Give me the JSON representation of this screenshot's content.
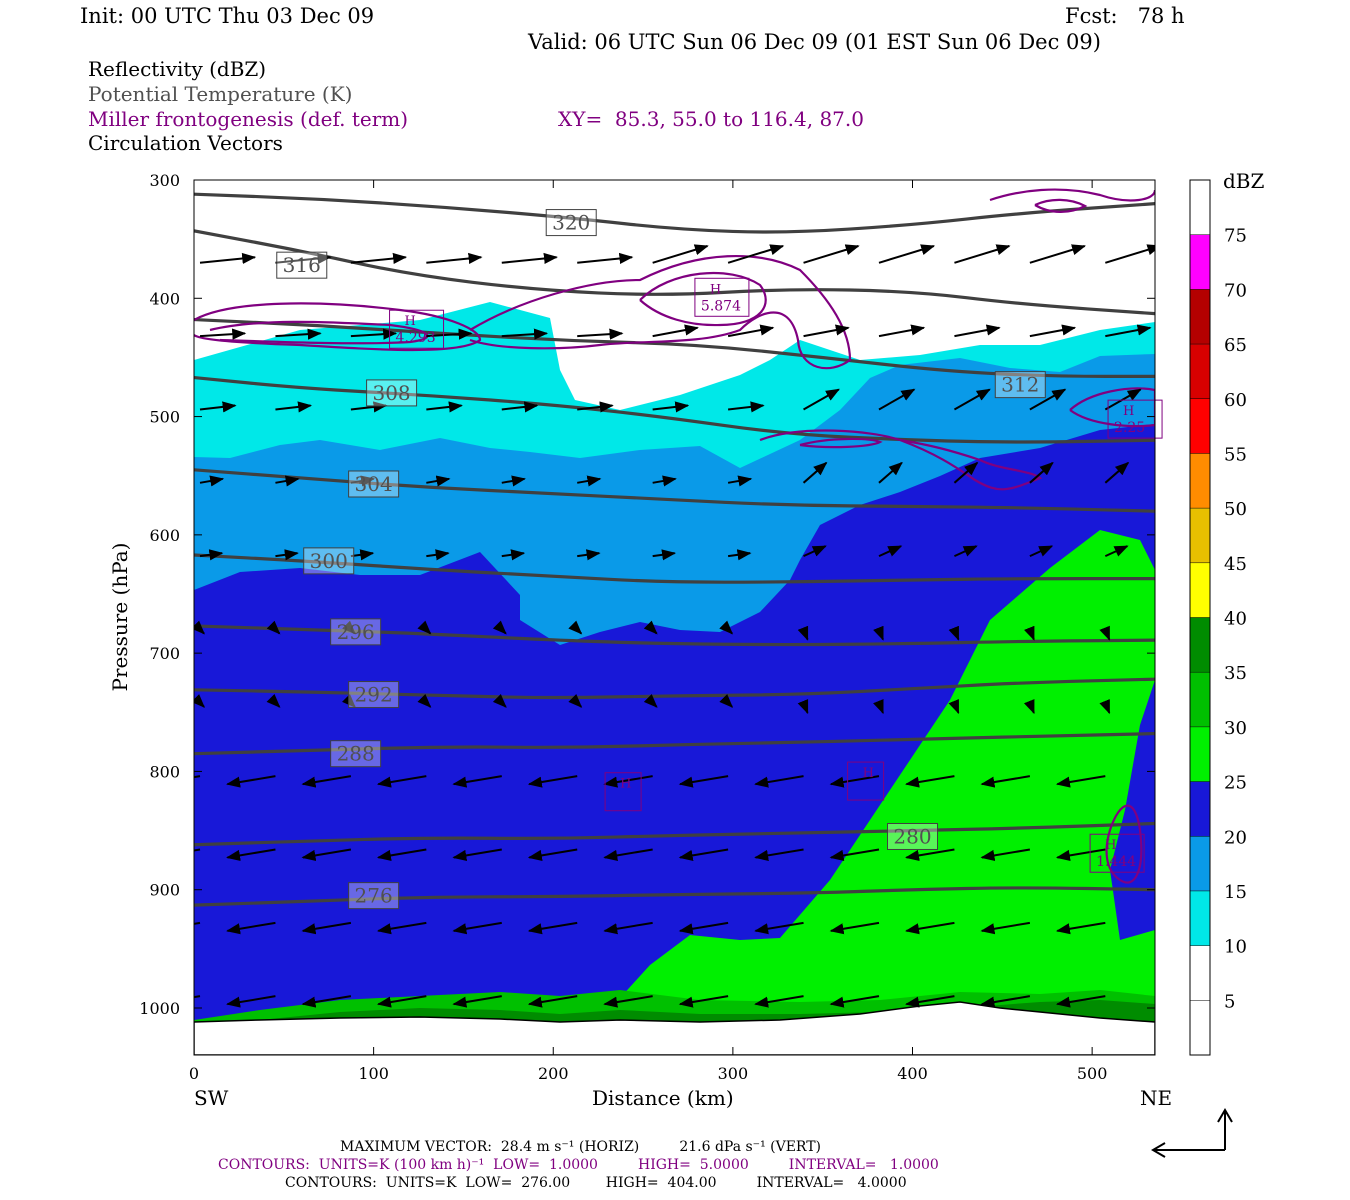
{
  "header": {
    "init": "Init: 00 UTC Thu 03 Dec 09",
    "fcst": "Fcst:   78 h",
    "valid": "Valid: 06 UTC Sun 06 Dec 09 (01 EST Sun 06 Dec 09)"
  },
  "fields": {
    "reflectivity": "Reflectivity (dBZ)",
    "theta": "Potential Temperature (K)",
    "frontogenesis": "Miller frontogenesis (def. term)",
    "xy": "XY=  85.3, 55.0 to 116.4, 87.0",
    "vectors": "Circulation Vectors"
  },
  "colors": {
    "frontogenesis": "#800080",
    "theta": "#404040",
    "theta_label": "#505050",
    "reflectivity_scale": [
      "#ffffff",
      "#00e8e8",
      "#0a9ae8",
      "#1818d8",
      "#00f000",
      "#00c000",
      "#008c00",
      "#ffff00",
      "#e8c000",
      "#ff8c00",
      "#ff0000",
      "#d80000",
      "#b40000",
      "#ff00ff",
      "#9654c8"
    ]
  },
  "footer": {
    "max_vector": "MAXIMUM VECTOR:  28.4 m s⁻¹ (HORIZ)         21.6 dPa s⁻¹ (VERT)",
    "contours_fg": "CONTOURS:  UNITS=K (100 km h)⁻¹  LOW=  1.0000         HIGH=  5.0000         INTERVAL=   1.0000",
    "contours_theta": "CONTOURS:  UNITS=K  LOW=  276.00        HIGH=  404.00         INTERVAL=   4.0000"
  },
  "chart_data": {
    "type": "cross-section",
    "xlabel": "Distance (km)",
    "ylabel": "Pressure (hPa)",
    "xlim": [
      0,
      535
    ],
    "ylim": [
      1040,
      300
    ],
    "x_ticks": [
      0,
      100,
      200,
      300,
      400,
      500
    ],
    "y_ticks": [
      300,
      400,
      500,
      600,
      700,
      800,
      900,
      1000
    ],
    "x_end_labels": {
      "left": "SW",
      "right": "NE"
    },
    "colorbar": {
      "unit": "dBZ",
      "levels": [
        5,
        10,
        15,
        20,
        25,
        30,
        35,
        40,
        45,
        50,
        55,
        60,
        65,
        70,
        75
      ]
    },
    "theta_contours": [
      {
        "value": 276,
        "points": [
          [
            0,
            913
          ],
          [
            60,
            910
          ],
          [
            130,
            906
          ],
          [
            200,
            906
          ],
          [
            270,
            904
          ],
          [
            340,
            903
          ],
          [
            400,
            900
          ],
          [
            460,
            898
          ],
          [
            535,
            900
          ]
        ],
        "label_at": [
          100,
          905
        ]
      },
      {
        "value": 280,
        "points": [
          [
            0,
            862
          ],
          [
            60,
            859
          ],
          [
            130,
            856
          ],
          [
            200,
            857
          ],
          [
            270,
            854
          ],
          [
            340,
            852
          ],
          [
            400,
            850
          ],
          [
            460,
            848
          ],
          [
            535,
            844
          ]
        ],
        "label_at": [
          400,
          855
        ]
      },
      {
        "value": 288,
        "points": [
          [
            0,
            785
          ],
          [
            70,
            782
          ],
          [
            140,
            779
          ],
          [
            210,
            780
          ],
          [
            280,
            777
          ],
          [
            350,
            775
          ],
          [
            420,
            772
          ],
          [
            480,
            770
          ],
          [
            535,
            768
          ]
        ],
        "label_at": [
          90,
          785
        ]
      },
      {
        "value": 292,
        "points": [
          [
            0,
            731
          ],
          [
            70,
            733
          ],
          [
            140,
            736
          ],
          [
            200,
            738
          ],
          [
            270,
            736
          ],
          [
            340,
            735
          ],
          [
            400,
            730
          ],
          [
            460,
            725
          ],
          [
            535,
            722
          ]
        ],
        "label_at": [
          100,
          735
        ]
      },
      {
        "value": 296,
        "points": [
          [
            0,
            677
          ],
          [
            60,
            680
          ],
          [
            120,
            683
          ],
          [
            200,
            689
          ],
          [
            260,
            692
          ],
          [
            330,
            693
          ],
          [
            400,
            692
          ],
          [
            460,
            690
          ],
          [
            535,
            689
          ]
        ],
        "label_at": [
          90,
          682
        ]
      },
      {
        "value": 300,
        "points": [
          [
            0,
            617
          ],
          [
            60,
            622
          ],
          [
            140,
            630
          ],
          [
            200,
            635
          ],
          [
            260,
            640
          ],
          [
            330,
            640
          ],
          [
            400,
            638
          ],
          [
            460,
            637
          ],
          [
            535,
            637
          ]
        ],
        "label_at": [
          75,
          622
        ]
      },
      {
        "value": 304,
        "points": [
          [
            0,
            545
          ],
          [
            60,
            552
          ],
          [
            130,
            560
          ],
          [
            200,
            565
          ],
          [
            260,
            570
          ],
          [
            330,
            575
          ],
          [
            400,
            576
          ],
          [
            460,
            577
          ],
          [
            535,
            580
          ]
        ],
        "label_at": [
          100,
          557
        ]
      },
      {
        "value": 308,
        "points": [
          [
            0,
            467
          ],
          [
            60,
            476
          ],
          [
            130,
            482
          ],
          [
            200,
            490
          ],
          [
            260,
            500
          ],
          [
            330,
            515
          ],
          [
            400,
            520
          ],
          [
            460,
            522
          ],
          [
            535,
            520
          ]
        ],
        "label_at": [
          110,
          480
        ]
      },
      {
        "value": 312,
        "points": [
          [
            0,
            418
          ],
          [
            70,
            423
          ],
          [
            140,
            430
          ],
          [
            210,
            436
          ],
          [
            280,
            439
          ],
          [
            350,
            450
          ],
          [
            420,
            462
          ],
          [
            480,
            466
          ],
          [
            535,
            466
          ]
        ],
        "label_at": [
          460,
          473
        ]
      },
      {
        "value": 316,
        "points": [
          [
            0,
            343
          ],
          [
            60,
            360
          ],
          [
            120,
            380
          ],
          [
            190,
            393
          ],
          [
            260,
            398
          ],
          [
            330,
            392
          ],
          [
            400,
            394
          ],
          [
            460,
            405
          ],
          [
            535,
            413
          ]
        ],
        "label_at": [
          60,
          372
        ]
      },
      {
        "value": 320,
        "points": [
          [
            0,
            312
          ],
          [
            70,
            316
          ],
          [
            140,
            323
          ],
          [
            210,
            332
          ],
          [
            270,
            342
          ],
          [
            330,
            345
          ],
          [
            400,
            338
          ],
          [
            460,
            328
          ],
          [
            535,
            320
          ]
        ],
        "label_at": [
          210,
          336
        ]
      }
    ],
    "frontogenesis_maxima": [
      {
        "label": "H",
        "value": "4.293",
        "at": [
          120,
          427
        ]
      },
      {
        "label": "H",
        "value": "5.874",
        "at": [
          290,
          400
        ]
      },
      {
        "label": "H",
        "value": "2.25",
        "at": [
          520,
          503
        ]
      },
      {
        "label": "H",
        "value": "1.444",
        "at": [
          510,
          870
        ]
      },
      {
        "label": "H",
        "value": "",
        "at": [
          240,
          818
        ]
      },
      {
        "label": "H",
        "value": "",
        "at": [
          375,
          809
        ]
      }
    ]
  }
}
